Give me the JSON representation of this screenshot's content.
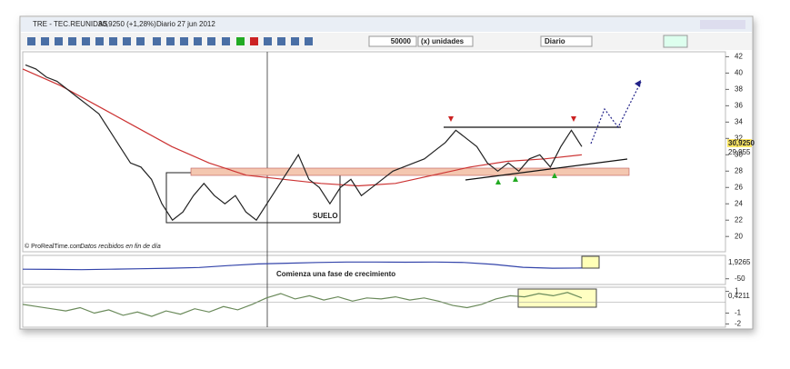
{
  "window": {
    "title": "TRE - TEC.REUNIDAS",
    "quote": "30,9250 (+1,28%)",
    "period": "Diario",
    "date": "27 jun 2012"
  },
  "toolbar": {
    "quantity": "50000",
    "units": "(x) unidades",
    "timeframe": "Diario"
  },
  "main_panel": {
    "ylim": [
      19.8,
      42.6
    ],
    "yticks": [
      42,
      40,
      38,
      36,
      34,
      32,
      30,
      28,
      26,
      24,
      22,
      20
    ],
    "close": [
      41,
      40.5,
      39.5,
      39,
      38,
      37,
      36,
      35,
      33,
      31,
      29,
      28.5,
      27,
      24,
      22,
      23,
      25,
      26.5,
      25,
      24,
      25,
      23,
      22,
      24,
      26,
      28,
      30,
      27,
      26,
      24,
      26,
      27,
      25,
      26,
      27,
      28,
      28.5,
      29,
      29.5,
      30.5,
      31.5,
      33,
      32,
      31,
      29,
      28,
      29,
      28,
      29.5,
      30,
      28.5,
      31,
      33,
      31
    ],
    "average": [
      40.5,
      38.5,
      36,
      33.5,
      31,
      29,
      27.5,
      27,
      26.5,
      26.2,
      26.5,
      27.5,
      28.5,
      29.2,
      29.5,
      30
    ],
    "last_price": "30,9250",
    "average_label": "29,955",
    "floor_label": "SUELO",
    "source": "© ProRealTime.com",
    "source_note": "Datos recibidos en fin de día"
  },
  "oscillator_panel": {
    "ylim": [
      -70,
      40
    ],
    "yticks": [
      -50
    ],
    "values": [
      -10,
      -11,
      -12,
      -10,
      -8,
      -6,
      -3,
      5,
      12,
      15,
      18,
      20,
      20,
      19,
      20,
      18,
      10,
      -2,
      -6,
      -5
    ],
    "value_label": "1,9265",
    "annotation": "Comienza una fase de crecimiento"
  },
  "momentum_panel": {
    "ylim": [
      -2.3,
      1.3
    ],
    "yticks": [
      1,
      -1,
      -2
    ],
    "values": [
      -0.2,
      -0.4,
      -0.6,
      -0.8,
      -0.5,
      -1,
      -0.7,
      -1.2,
      -0.9,
      -1.3,
      -0.8,
      -1.1,
      -0.6,
      -0.9,
      -0.4,
      -0.7,
      -0.2,
      0.4,
      0.8,
      0.3,
      0.6,
      0.2,
      0.5,
      0.1,
      0.4,
      0.3,
      0.5,
      0.2,
      0.4,
      0.1,
      -0.3,
      -0.5,
      -0.2,
      0.3,
      0.6,
      0.5,
      0.8,
      0.6,
      0.9,
      0.4
    ],
    "value_label": "0,4211"
  }
}
